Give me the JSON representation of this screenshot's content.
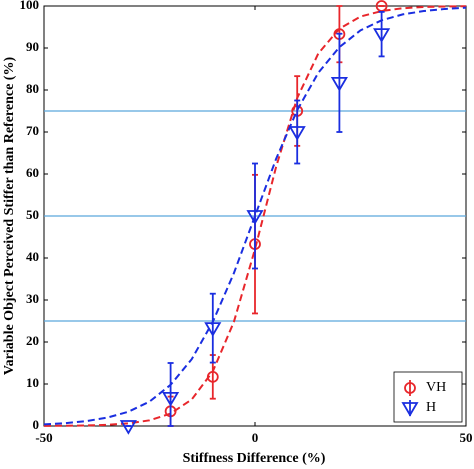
{
  "chart_data": {
    "type": "psychometric",
    "x_label": "Stiffness Difference (%)",
    "y_label": "Variable Object Perceived Stiffer than Reference (%)",
    "xlim": [
      -50,
      50
    ],
    "xticks": [
      -50,
      0,
      50
    ],
    "ylim": [
      0,
      100
    ],
    "yticks": [
      0,
      10,
      20,
      30,
      40,
      50,
      60,
      70,
      80,
      90,
      100
    ],
    "hlines": [
      25,
      50,
      75
    ],
    "hline_color": "#5aa7dc",
    "legend": "lower right",
    "fit_x": [
      -50,
      -45,
      -40,
      -35,
      -30,
      -25,
      -20,
      -15,
      -10,
      -5,
      0,
      5,
      10,
      15,
      20,
      25,
      30,
      35,
      40,
      45,
      50
    ],
    "series": [
      {
        "name": "VH",
        "color": "#e8262b",
        "marker": "circle",
        "x": [
          -20,
          -10,
          0,
          10,
          20,
          30
        ],
        "values": [
          3.5,
          11.7,
          43.3,
          75,
          93.3,
          100
        ],
        "errors": [
          3.5,
          5.2,
          16.5,
          8.3,
          6.7,
          0
        ],
        "fit": [
          0.03,
          0.06,
          0.13,
          0.28,
          0.62,
          1.35,
          2.96,
          6.3,
          13.0,
          24.8,
          42.1,
          61.7,
          78.1,
          88.7,
          94.6,
          97.5,
          98.8,
          99.47,
          99.76,
          99.89,
          99.95
        ]
      },
      {
        "name": "H",
        "color": "#1a2ee0",
        "marker": "triangle-down",
        "x": [
          -30,
          -20,
          -10,
          0,
          10,
          20,
          30
        ],
        "values": [
          0,
          6.7,
          23.3,
          50,
          70,
          81.7,
          93.3
        ],
        "errors": [
          0,
          8.3,
          8.2,
          12.5,
          7.5,
          11.7,
          5.3
        ],
        "fit": [
          0.38,
          0.67,
          1.16,
          2.0,
          3.4,
          5.8,
          9.8,
          15.9,
          24.8,
          36.4,
          50,
          63.6,
          75.2,
          84.1,
          90.2,
          94.2,
          96.6,
          98.0,
          98.8,
          99.3,
          99.6
        ]
      }
    ]
  }
}
